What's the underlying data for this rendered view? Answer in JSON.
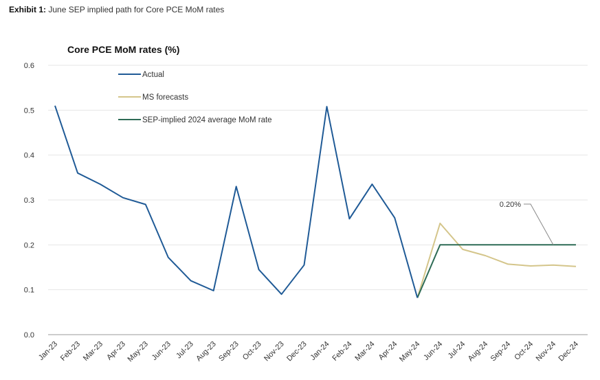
{
  "exhibit": {
    "label": "Exhibit 1:",
    "caption": "June SEP implied path for Core PCE MoM rates"
  },
  "chart_data": {
    "type": "line",
    "title": "Core PCE MoM rates (%)",
    "xlabel": "",
    "ylabel": "",
    "ylim": [
      0,
      0.6
    ],
    "yticks": [
      "0.0",
      "0.1",
      "0.2",
      "0.3",
      "0.4",
      "0.5",
      "0.6"
    ],
    "ytick_values": [
      0,
      0.1,
      0.2,
      0.3,
      0.4,
      0.5,
      0.6
    ],
    "grid": true,
    "legend_position": "top-left",
    "categories": [
      "Jan-23",
      "Feb-23",
      "Mar-23",
      "Apr-23",
      "May-23",
      "Jun-23",
      "Jul-23",
      "Aug-23",
      "Sep-23",
      "Oct-23",
      "Nov-23",
      "Dec-23",
      "Jan-24",
      "Feb-24",
      "Mar-24",
      "Apr-24",
      "May-24",
      "Jun-24",
      "Jul-24",
      "Aug-24",
      "Sep-24",
      "Oct-24",
      "Nov-24",
      "Dec-24"
    ],
    "series": [
      {
        "name": "Actual",
        "color": "#1f5a96",
        "values": [
          0.51,
          0.36,
          0.335,
          0.305,
          0.29,
          0.172,
          0.12,
          0.098,
          0.33,
          0.145,
          0.09,
          0.155,
          0.508,
          0.258,
          0.335,
          0.26,
          0.082,
          null,
          null,
          null,
          null,
          null,
          null,
          null
        ]
      },
      {
        "name": "MS forecasts",
        "color": "#d4c58a",
        "values": [
          null,
          null,
          null,
          null,
          null,
          null,
          null,
          null,
          null,
          null,
          null,
          null,
          null,
          null,
          null,
          null,
          0.082,
          0.248,
          0.19,
          0.176,
          0.157,
          0.153,
          0.155,
          0.152
        ]
      },
      {
        "name": "SEP-implied 2024 average MoM rate",
        "color": "#2d6b55",
        "values": [
          null,
          null,
          null,
          null,
          null,
          null,
          null,
          null,
          null,
          null,
          null,
          null,
          null,
          null,
          null,
          null,
          0.082,
          0.2,
          0.2,
          0.2,
          0.2,
          0.2,
          0.2,
          0.2
        ]
      }
    ],
    "annotations": [
      {
        "text": "0.20%",
        "x": "Nov-24",
        "y": 0.2
      }
    ]
  }
}
